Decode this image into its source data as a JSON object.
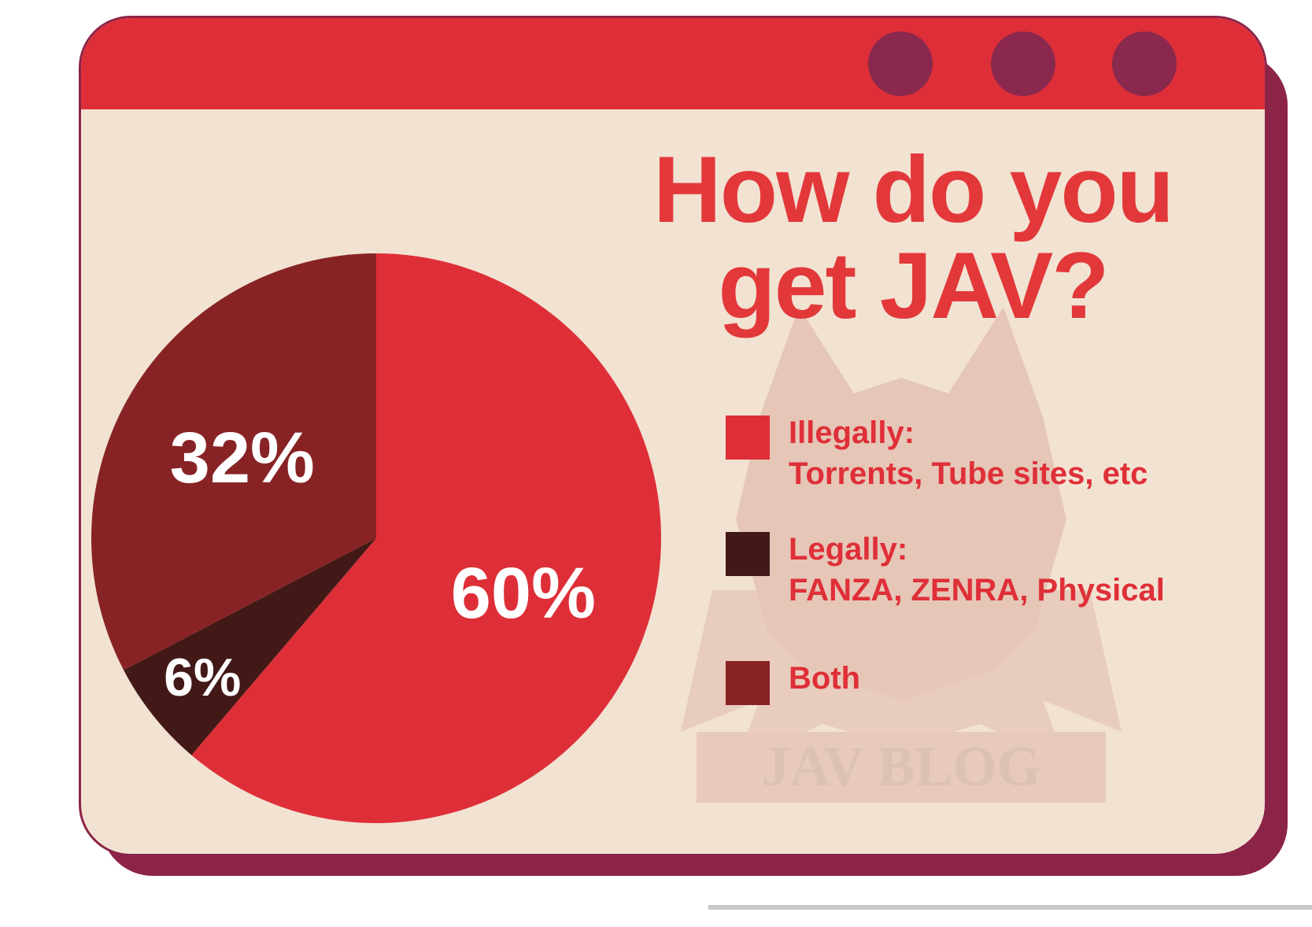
{
  "chart_data": {
    "type": "pie",
    "title": "How do you get JAV?",
    "slices": [
      {
        "label": "Illegally:",
        "sublabel": "Torrents, Tube sites, etc",
        "value": 60,
        "display": "60%",
        "color": "#de2f38"
      },
      {
        "label": "Legally:",
        "sublabel": "FANZA, ZENRA, Physical",
        "value": 6,
        "display": "6%",
        "color": "#421917"
      },
      {
        "label": "Both",
        "sublabel": "",
        "value": 32,
        "display": "32%",
        "color": "#882325"
      }
    ],
    "legend_position": "right"
  },
  "title_lines": [
    "How do you",
    "get JAV?"
  ],
  "watermark": {
    "text": "JAV BLOG"
  },
  "colors": {
    "titlebar": "#de2f38",
    "window_bg": "#f2e2d2",
    "shadow": "#8c2448",
    "dots": "#8b284e",
    "title_text": "#e2383a"
  },
  "window_controls": [
    "window-dot-1",
    "window-dot-2",
    "window-dot-3"
  ]
}
